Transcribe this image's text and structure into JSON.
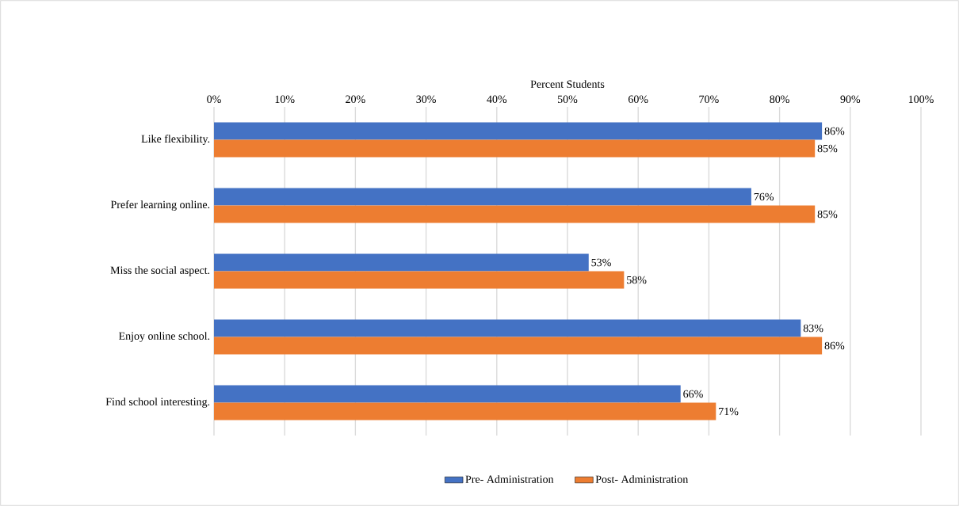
{
  "chart_data": {
    "type": "bar",
    "orientation": "horizontal",
    "xlabel": "Percent Students",
    "categories": [
      "Like flexibility.",
      "Prefer learning online.",
      "Miss the social aspect.",
      "Enjoy online school.",
      "Find school interesting."
    ],
    "series": [
      {
        "name": "Pre- Administration",
        "color": "#4472c4",
        "values": [
          86,
          76,
          53,
          83,
          66
        ],
        "value_labels": [
          "86%",
          "76%",
          "53%",
          "83%",
          "66%"
        ]
      },
      {
        "name": "Post- Administration",
        "color": "#ed7d31",
        "values": [
          85,
          85,
          58,
          86,
          71
        ],
        "value_labels": [
          "85%",
          "85%",
          "58%",
          "86%",
          "71%"
        ]
      }
    ],
    "xlim": [
      0,
      100
    ],
    "xticks": [
      {
        "value": 0,
        "label": "0%"
      },
      {
        "value": 10,
        "label": "10%"
      },
      {
        "value": 20,
        "label": "20%"
      },
      {
        "value": 30,
        "label": "30%"
      },
      {
        "value": 40,
        "label": "40%"
      },
      {
        "value": 50,
        "label": "50%"
      },
      {
        "value": 60,
        "label": "60%"
      },
      {
        "value": 70,
        "label": "70%"
      },
      {
        "value": 80,
        "label": "80%"
      },
      {
        "value": 90,
        "label": "90%"
      },
      {
        "value": 100,
        "label": "100%"
      }
    ],
    "grid": "x",
    "legend": "bottom"
  }
}
